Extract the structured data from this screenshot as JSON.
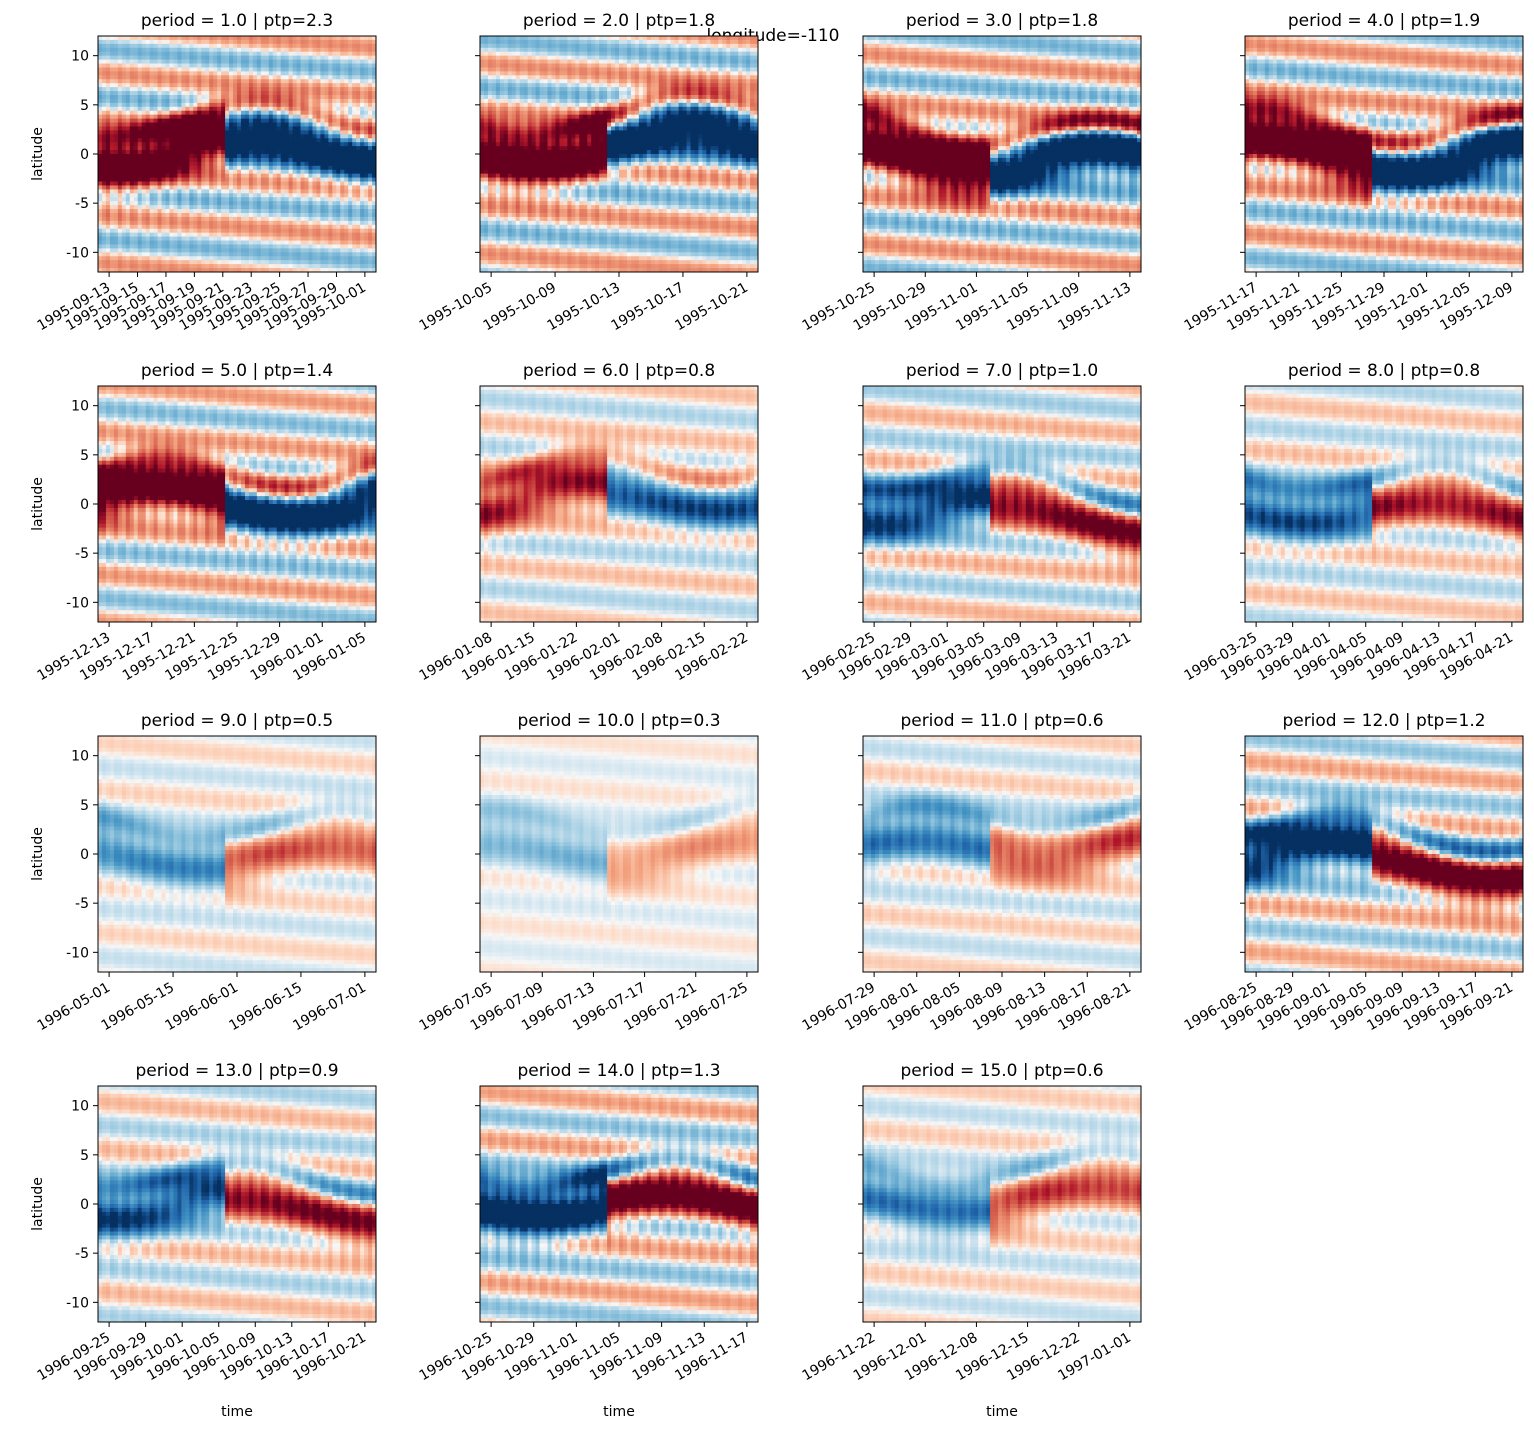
{
  "suptitle": "longitude=-110",
  "colors": {
    "positive": "#67001f",
    "negative": "#053061",
    "neutral": "#f7f7f7",
    "axis": "#000000"
  },
  "chart_data": {
    "type": "heatmap",
    "colormap": "RdBu_r",
    "y_label": "latitude",
    "x_label": "time",
    "y_ticks": [
      10,
      5,
      0,
      -5,
      -10
    ],
    "ylim": [
      -12,
      12
    ],
    "panels": [
      {
        "title": "period = 1.0 | ptp=2.3",
        "period": 1.0,
        "ptp": 2.3,
        "x_ticks": [
          "1995-09-13",
          "1995-09-15",
          "1995-09-17",
          "1995-09-19",
          "1995-09-21",
          "1995-09-23",
          "1995-09-25",
          "1995-09-27",
          "1995-09-29",
          "1995-10-01"
        ]
      },
      {
        "title": "period = 2.0 | ptp=1.8",
        "period": 2.0,
        "ptp": 1.8,
        "x_ticks": [
          "1995-10-05",
          "1995-10-09",
          "1995-10-13",
          "1995-10-17",
          "1995-10-21"
        ]
      },
      {
        "title": "period = 3.0 | ptp=1.8",
        "period": 3.0,
        "ptp": 1.8,
        "x_ticks": [
          "1995-10-25",
          "1995-10-29",
          "1995-11-01",
          "1995-11-05",
          "1995-11-09",
          "1995-11-13"
        ]
      },
      {
        "title": "period = 4.0 | ptp=1.9",
        "period": 4.0,
        "ptp": 1.9,
        "x_ticks": [
          "1995-11-17",
          "1995-11-21",
          "1995-11-25",
          "1995-11-29",
          "1995-12-01",
          "1995-12-05",
          "1995-12-09"
        ]
      },
      {
        "title": "period = 5.0 | ptp=1.4",
        "period": 5.0,
        "ptp": 1.4,
        "x_ticks": [
          "1995-12-13",
          "1995-12-17",
          "1995-12-21",
          "1995-12-25",
          "1995-12-29",
          "1996-01-01",
          "1996-01-05"
        ]
      },
      {
        "title": "period = 6.0 | ptp=0.8",
        "period": 6.0,
        "ptp": 0.8,
        "x_ticks": [
          "1996-01-08",
          "1996-01-15",
          "1996-01-22",
          "1996-02-01",
          "1996-02-08",
          "1996-02-15",
          "1996-02-22"
        ]
      },
      {
        "title": "period = 7.0 | ptp=1.0",
        "period": 7.0,
        "ptp": 1.0,
        "x_ticks": [
          "1996-02-25",
          "1996-02-29",
          "1996-03-01",
          "1996-03-05",
          "1996-03-09",
          "1996-03-13",
          "1996-03-17",
          "1996-03-21"
        ]
      },
      {
        "title": "period = 8.0 | ptp=0.8",
        "period": 8.0,
        "ptp": 0.8,
        "x_ticks": [
          "1996-03-25",
          "1996-03-29",
          "1996-04-01",
          "1996-04-05",
          "1996-04-09",
          "1996-04-13",
          "1996-04-17",
          "1996-04-21"
        ]
      },
      {
        "title": "period = 9.0 | ptp=0.5",
        "period": 9.0,
        "ptp": 0.5,
        "x_ticks": [
          "1996-05-01",
          "1996-05-15",
          "1996-06-01",
          "1996-06-15",
          "1996-07-01"
        ]
      },
      {
        "title": "period = 10.0 | ptp=0.3",
        "period": 10.0,
        "ptp": 0.3,
        "x_ticks": [
          "1996-07-05",
          "1996-07-09",
          "1996-07-13",
          "1996-07-17",
          "1996-07-21",
          "1996-07-25"
        ]
      },
      {
        "title": "period = 11.0 | ptp=0.6",
        "period": 11.0,
        "ptp": 0.6,
        "x_ticks": [
          "1996-07-29",
          "1996-08-01",
          "1996-08-05",
          "1996-08-09",
          "1996-08-13",
          "1996-08-17",
          "1996-08-21"
        ]
      },
      {
        "title": "period = 12.0 | ptp=1.2",
        "period": 12.0,
        "ptp": 1.2,
        "x_ticks": [
          "1996-08-25",
          "1996-08-29",
          "1996-09-01",
          "1996-09-05",
          "1996-09-09",
          "1996-09-13",
          "1996-09-17",
          "1996-09-21"
        ]
      },
      {
        "title": "period = 13.0 | ptp=0.9",
        "period": 13.0,
        "ptp": 0.9,
        "x_ticks": [
          "1996-09-25",
          "1996-09-29",
          "1996-10-01",
          "1996-10-05",
          "1996-10-09",
          "1996-10-13",
          "1996-10-17",
          "1996-10-21"
        ]
      },
      {
        "title": "period = 14.0 | ptp=1.3",
        "period": 14.0,
        "ptp": 1.3,
        "x_ticks": [
          "1996-10-25",
          "1996-10-29",
          "1996-11-01",
          "1996-11-05",
          "1996-11-09",
          "1996-11-13",
          "1996-11-17"
        ]
      },
      {
        "title": "period = 15.0 | ptp=0.6",
        "period": 15.0,
        "ptp": 0.6,
        "x_ticks": [
          "1996-11-22",
          "1996-12-01",
          "1996-12-08",
          "1996-12-15",
          "1996-12-22",
          "1997-01-01"
        ]
      }
    ]
  }
}
